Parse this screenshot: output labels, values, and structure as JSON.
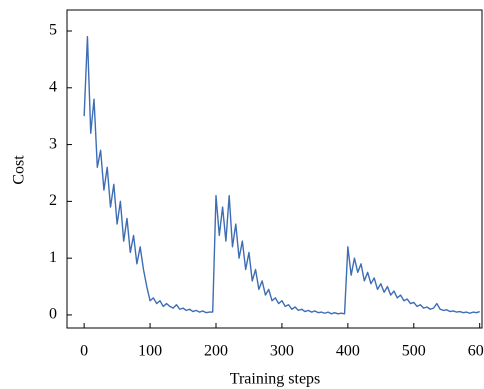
{
  "chart_data": {
    "type": "line",
    "xlabel": "Training steps",
    "ylabel": "Cost",
    "color": "#3d6db5",
    "x": [
      0,
      5,
      10,
      15,
      20,
      25,
      30,
      35,
      40,
      45,
      50,
      55,
      60,
      65,
      70,
      75,
      80,
      85,
      90,
      95,
      100,
      105,
      110,
      115,
      120,
      125,
      130,
      135,
      140,
      145,
      150,
      155,
      160,
      165,
      170,
      175,
      180,
      185,
      190,
      195,
      200,
      205,
      210,
      215,
      220,
      225,
      230,
      235,
      240,
      245,
      250,
      255,
      260,
      265,
      270,
      275,
      280,
      285,
      290,
      295,
      300,
      305,
      310,
      315,
      320,
      325,
      330,
      335,
      340,
      345,
      350,
      355,
      360,
      365,
      370,
      375,
      380,
      385,
      390,
      395,
      400,
      405,
      410,
      415,
      420,
      425,
      430,
      435,
      440,
      445,
      450,
      455,
      460,
      465,
      470,
      475,
      480,
      485,
      490,
      495,
      500,
      505,
      510,
      515,
      520,
      525,
      530,
      535,
      540,
      545,
      550,
      555,
      560,
      565,
      570,
      575,
      580,
      585,
      590,
      595,
      600
    ],
    "values": [
      3.5,
      4.9,
      3.2,
      3.8,
      2.6,
      2.9,
      2.2,
      2.6,
      1.9,
      2.3,
      1.6,
      2.0,
      1.3,
      1.7,
      1.1,
      1.4,
      0.9,
      1.2,
      0.8,
      0.5,
      0.25,
      0.3,
      0.2,
      0.25,
      0.15,
      0.2,
      0.15,
      0.12,
      0.18,
      0.1,
      0.12,
      0.08,
      0.1,
      0.06,
      0.08,
      0.05,
      0.07,
      0.04,
      0.05,
      0.05,
      2.1,
      1.4,
      1.9,
      1.3,
      2.1,
      1.2,
      1.6,
      1.0,
      1.3,
      0.8,
      1.1,
      0.6,
      0.8,
      0.45,
      0.6,
      0.35,
      0.45,
      0.25,
      0.3,
      0.2,
      0.25,
      0.15,
      0.18,
      0.1,
      0.14,
      0.08,
      0.1,
      0.06,
      0.08,
      0.05,
      0.07,
      0.04,
      0.05,
      0.03,
      0.05,
      0.02,
      0.04,
      0.02,
      0.03,
      0.02,
      1.2,
      0.7,
      1.0,
      0.75,
      0.9,
      0.6,
      0.75,
      0.55,
      0.65,
      0.45,
      0.55,
      0.4,
      0.5,
      0.35,
      0.42,
      0.3,
      0.35,
      0.25,
      0.28,
      0.2,
      0.22,
      0.15,
      0.18,
      0.12,
      0.14,
      0.1,
      0.12,
      0.2,
      0.1,
      0.08,
      0.09,
      0.06,
      0.07,
      0.05,
      0.06,
      0.04,
      0.05,
      0.03,
      0.05,
      0.04,
      0.06
    ],
    "xlim": [
      -26,
      605
    ],
    "ylim": [
      -0.23,
      5.37
    ],
    "xticks": [
      0,
      100,
      200,
      300,
      400,
      500,
      600
    ],
    "yticks": [
      0,
      1,
      2,
      3,
      4,
      5
    ]
  }
}
